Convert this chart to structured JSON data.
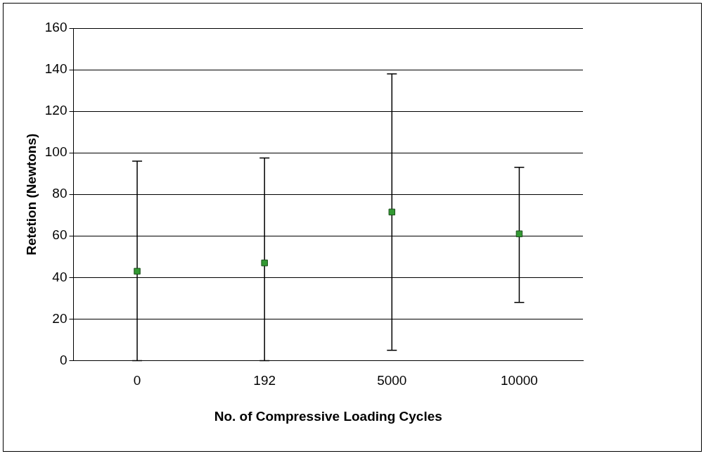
{
  "chart_data": {
    "type": "scatter",
    "xlabel": "No. of Compressive Loading Cycles",
    "ylabel": "Retetion (Newtons)",
    "categories": [
      "0",
      "192",
      "5000",
      "10000"
    ],
    "series": [
      {
        "color": "#339933",
        "values": [
          43,
          47,
          71.5,
          61
        ],
        "errors": [
          [
            0,
            96
          ],
          [
            0,
            97.5
          ],
          [
            5,
            138
          ],
          [
            28,
            93
          ]
        ]
      }
    ],
    "ylim": [
      0,
      160
    ],
    "yticks": [
      0,
      20,
      40,
      60,
      80,
      100,
      120,
      140,
      160
    ],
    "grid": "y",
    "marker": "square"
  }
}
